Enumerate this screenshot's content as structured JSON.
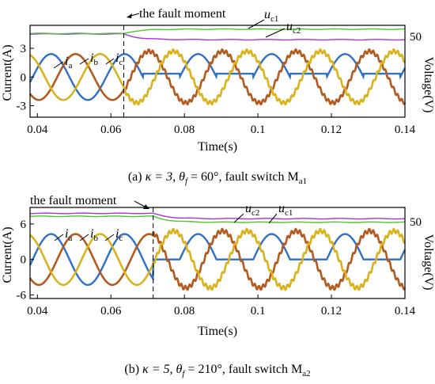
{
  "colors": {
    "ia": "#2f6fc4",
    "ib": "#b35a1f",
    "ic": "#d9b21c",
    "uc1": "#a832e6",
    "uc2": "#4ec62c",
    "axis": "#000000"
  },
  "chart_data": [
    {
      "type": "line",
      "caption": {
        "prefix": "(a) ",
        "kappa": "κ = 3, ",
        "theta": "θ",
        "theta_sub": "f",
        "rest": " = 60°, fault switch M",
        "switch_sub": "a1"
      },
      "xlabel": "Time(s)",
      "ylabel_left": "Current(A)",
      "ylabel_right": "Voltage(V)",
      "xlim": [
        0.038,
        0.14
      ],
      "ylim": [
        -4.2,
        5.4
      ],
      "xticks": [
        "0.04",
        "0.06",
        "0.08",
        "0.1",
        "0.12",
        "0.14"
      ],
      "xtick_values": [
        0.04,
        0.06,
        0.08,
        0.1,
        0.12,
        0.14
      ],
      "yticks_left": [
        "3",
        "0",
        "-3"
      ],
      "ytick_left_values": [
        3,
        0,
        -3
      ],
      "yticks_right": [
        "50"
      ],
      "fault_time": 0.0635,
      "fault_label": "the fault moment",
      "current_amplitude": 2.4,
      "post_fault_faulty_level": 0.35,
      "frequency_hz": 50,
      "voltage_levels": {
        "uc1": 4.5,
        "uc2": 4.55
      },
      "post_fault_voltage": {
        "uc1": 3.9,
        "uc2": 5.0
      },
      "series": [
        {
          "name": "i",
          "sub": "a"
        },
        {
          "name": "i",
          "sub": "b"
        },
        {
          "name": "i",
          "sub": "c"
        },
        {
          "name": "u",
          "sub": "c1"
        },
        {
          "name": "u",
          "sub": "c2"
        }
      ]
    },
    {
      "type": "line",
      "caption": {
        "prefix": "(b) ",
        "kappa": "κ = 5, ",
        "theta": "θ",
        "theta_sub": "f",
        "rest": " = 210°, fault switch M",
        "switch_sub": "a2"
      },
      "xlabel": "Time(s)",
      "ylabel_left": "Current(A)",
      "ylabel_right": "Voltage(V)",
      "xlim": [
        0.038,
        0.14
      ],
      "ylim": [
        -6.6,
        8.8
      ],
      "xticks": [
        "0.04",
        "0.06",
        "0.08",
        "0.1",
        "0.12",
        "0.14"
      ],
      "xtick_values": [
        0.04,
        0.06,
        0.08,
        0.1,
        0.12,
        0.14
      ],
      "yticks_left": [
        "6",
        "0",
        "-6"
      ],
      "ytick_left_values": [
        6,
        0,
        -6
      ],
      "yticks_right": [
        "50"
      ],
      "fault_time": 0.0715,
      "fault_label": "the fault moment",
      "current_amplitude": 4.3,
      "post_fault_faulty_level": 0.0,
      "frequency_hz": 50,
      "voltage_levels": {
        "uc1": 7.8,
        "uc2": 7.3
      },
      "post_fault_voltage": {
        "uc1": 6.9,
        "uc2": 6.3
      },
      "series": [
        {
          "name": "i",
          "sub": "a"
        },
        {
          "name": "i",
          "sub": "b"
        },
        {
          "name": "i",
          "sub": "c"
        },
        {
          "name": "u",
          "sub": "c2"
        },
        {
          "name": "u",
          "sub": "c1"
        }
      ]
    }
  ]
}
